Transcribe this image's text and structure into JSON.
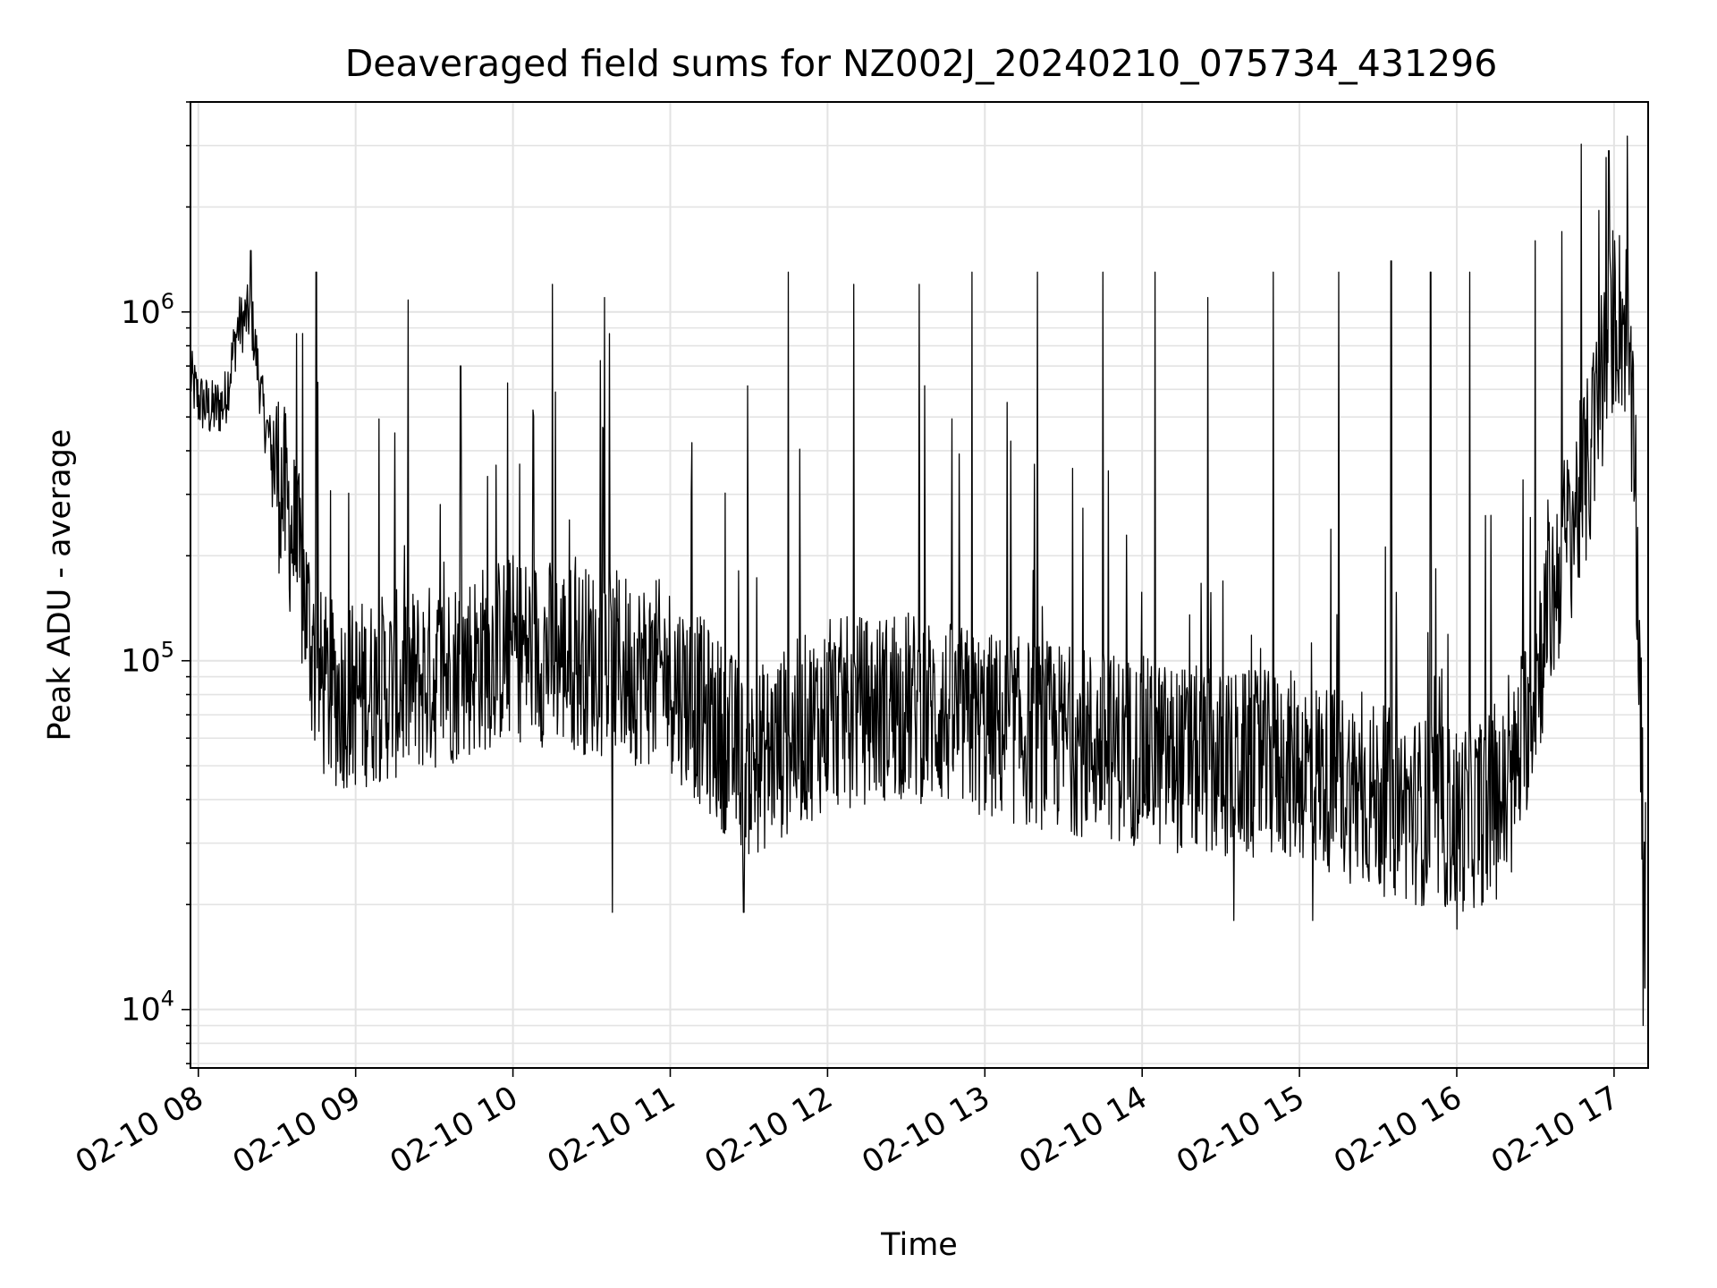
{
  "chart_data": {
    "type": "line",
    "title": "Deaveraged field sums for NZ002J_20240210_075734_431296",
    "xlabel": "Time",
    "ylabel": "Peak ADU - average",
    "y_scale": "log",
    "ylim": [
      6800,
      4000000
    ],
    "xlim": [
      "2024-02-10 07:57",
      "2024-02-10 17:13"
    ],
    "grid": true,
    "line_color": "#000000",
    "x_ticks": [
      "02-10 08",
      "02-10 09",
      "02-10 10",
      "02-10 11",
      "02-10 12",
      "02-10 13",
      "02-10 14",
      "02-10 15",
      "02-10 16",
      "02-10 17"
    ],
    "y_ticks": [
      {
        "base": "10",
        "exp": "4",
        "value": 10000
      },
      {
        "base": "10",
        "exp": "5",
        "value": 100000
      },
      {
        "base": "10",
        "exp": "6",
        "value": 1000000
      }
    ],
    "series": [
      {
        "x": [
          "2024-02-10 07:57",
          "2024-02-10 08:00",
          "2024-02-10 08:05",
          "2024-02-10 08:10",
          "2024-02-10 08:15",
          "2024-02-10 08:20",
          "2024-02-10 08:25",
          "2024-02-10 08:30",
          "2024-02-10 08:35",
          "2024-02-10 08:40",
          "2024-02-10 08:45",
          "2024-02-10 08:50",
          "2024-02-10 09:00",
          "2024-02-10 09:30",
          "2024-02-10 10:00",
          "2024-02-10 10:30",
          "2024-02-10 11:00",
          "2024-02-10 11:30",
          "2024-02-10 12:00",
          "2024-02-10 12:30",
          "2024-02-10 13:00",
          "2024-02-10 13:30",
          "2024-02-10 14:00",
          "2024-02-10 14:30",
          "2024-02-10 15:00",
          "2024-02-10 15:30",
          "2024-02-10 16:00",
          "2024-02-10 16:20",
          "2024-02-10 16:30",
          "2024-02-10 16:40",
          "2024-02-10 16:50",
          "2024-02-10 17:00",
          "2024-02-10 17:05",
          "2024-02-10 17:08",
          "2024-02-10 17:10",
          "2024-02-10 17:12"
        ],
        "y": [
          650000,
          560000,
          520000,
          550000,
          900000,
          1000000,
          500000,
          350000,
          250000,
          160000,
          90000,
          80000,
          80000,
          90000,
          110000,
          100000,
          90000,
          50000,
          70000,
          75000,
          65000,
          60000,
          55000,
          50000,
          50000,
          40000,
          35000,
          40000,
          90000,
          200000,
          350000,
          1000000,
          900000,
          300000,
          80000,
          12000
        ],
        "spikes": [
          [
            "2024-02-10 08:20",
            1500000
          ],
          [
            "2024-02-10 08:45",
            1300000
          ],
          [
            "2024-02-10 09:15",
            450000
          ],
          [
            "2024-02-10 09:40",
            700000
          ],
          [
            "2024-02-10 10:15",
            1200000
          ],
          [
            "2024-02-10 10:35",
            1100000
          ],
          [
            "2024-02-10 11:45",
            1300000
          ],
          [
            "2024-02-10 12:10",
            1200000
          ],
          [
            "2024-02-10 12:35",
            1200000
          ],
          [
            "2024-02-10 12:55",
            1300000
          ],
          [
            "2024-02-10 13:20",
            1300000
          ],
          [
            "2024-02-10 13:45",
            1300000
          ],
          [
            "2024-02-10 14:05",
            1300000
          ],
          [
            "2024-02-10 14:25",
            1100000
          ],
          [
            "2024-02-10 14:50",
            1300000
          ],
          [
            "2024-02-10 15:15",
            1300000
          ],
          [
            "2024-02-10 15:35",
            1400000
          ],
          [
            "2024-02-10 15:50",
            1300000
          ],
          [
            "2024-02-10 16:05",
            1300000
          ],
          [
            "2024-02-10 16:30",
            1600000
          ],
          [
            "2024-02-10 16:40",
            1700000
          ],
          [
            "2024-02-10 16:58",
            2900000
          ],
          [
            "2024-02-10 11:28",
            19000
          ],
          [
            "2024-02-10 10:38",
            19000
          ],
          [
            "2024-02-10 14:35",
            18000
          ],
          [
            "2024-02-10 15:05",
            18000
          ],
          [
            "2024-02-10 16:00",
            17000
          ],
          [
            "2024-02-10 17:11",
            9000
          ]
        ]
      }
    ]
  }
}
